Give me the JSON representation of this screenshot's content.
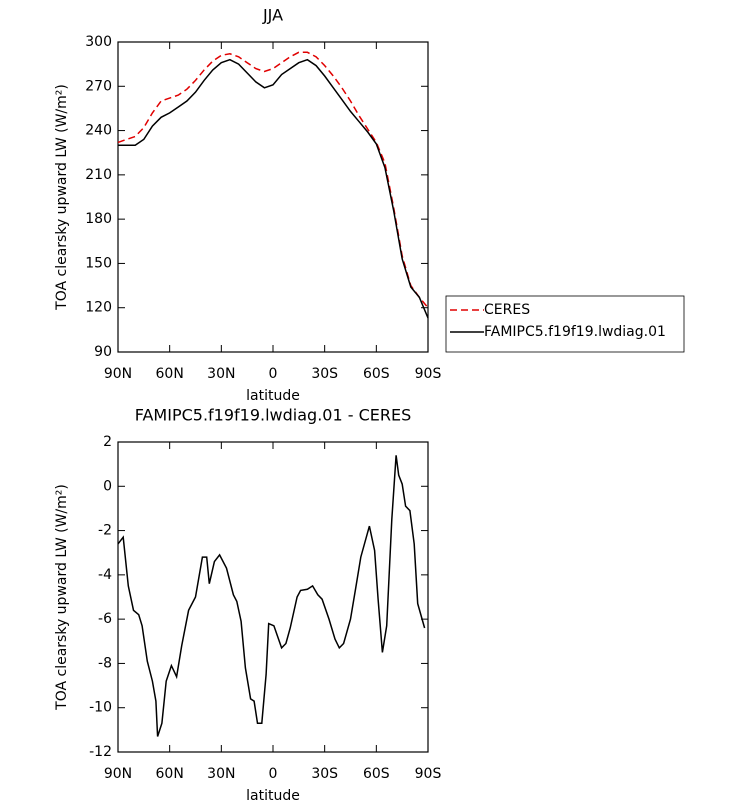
{
  "chart_data": [
    {
      "type": "line",
      "title": "JJA",
      "x": [
        90,
        85,
        80,
        75,
        70,
        65,
        60,
        55,
        50,
        45,
        40,
        35,
        30,
        25,
        20,
        15,
        10,
        5,
        0,
        -5,
        -10,
        -15,
        -20,
        -25,
        -30,
        -35,
        -40,
        -45,
        -50,
        -55,
        -60,
        -65,
        -70,
        -75,
        -80,
        -85,
        -90
      ],
      "series": [
        {
          "name": "CERES",
          "color": "#e00000",
          "dash": true,
          "values": [
            232,
            234,
            236,
            242,
            252,
            260,
            262,
            264,
            268,
            274,
            281,
            287,
            291,
            292,
            290,
            286,
            282,
            280,
            282,
            286,
            290,
            293,
            293,
            290,
            284,
            277,
            269,
            260,
            250,
            241,
            232,
            218,
            188,
            155,
            135,
            127,
            120
          ]
        },
        {
          "name": "FAMIPC5.f19f19.lwdiag.01",
          "color": "#000000",
          "dash": false,
          "values": [
            230,
            230,
            230,
            234,
            243,
            249,
            252,
            256,
            260,
            266,
            274,
            281,
            286,
            288,
            285,
            279,
            273,
            269,
            271,
            278,
            282,
            286,
            288,
            284,
            277,
            269,
            261,
            253,
            246,
            239,
            231,
            215,
            186,
            153,
            134,
            127,
            113
          ]
        }
      ],
      "xlim": [
        90,
        -90
      ],
      "xticks": [
        {
          "value": 90,
          "label": "90N"
        },
        {
          "value": 60,
          "label": "60N"
        },
        {
          "value": 30,
          "label": "30N"
        },
        0,
        {
          "value": -30,
          "label": "30S"
        },
        {
          "value": -60,
          "label": "60S"
        },
        {
          "value": -90,
          "label": "90S"
        }
      ],
      "ylim": [
        90,
        300
      ],
      "yticks": [
        90,
        120,
        150,
        180,
        210,
        240,
        270,
        300
      ],
      "xlabel": "latitude",
      "ylabel": "TOA clearsky upward LW (W/m²)",
      "legend": "right"
    },
    {
      "type": "line",
      "title": "FAMIPC5.f19f19.lwdiag.01 - CERES",
      "x": [
        90,
        87,
        84,
        81,
        78,
        76,
        73,
        70,
        68,
        67,
        64.5,
        62,
        59,
        56,
        53,
        49,
        45,
        41,
        38.5,
        37,
        34,
        31,
        27,
        23,
        21,
        18.5,
        16,
        13,
        11,
        9,
        6.5,
        4,
        2.5,
        -0.5,
        -5,
        -7.5,
        -10,
        -14,
        -16,
        -20,
        -23,
        -26,
        -28.5,
        -32.5,
        -36,
        -38.5,
        -41,
        -45,
        -48,
        -51,
        -56,
        -59,
        -61,
        -63.5,
        -66,
        -69,
        -71.5,
        -73,
        -75,
        -77,
        -79.5,
        -82,
        -84,
        -88
      ],
      "values": [
        -2.6,
        -2.3,
        -4.5,
        -5.6,
        -5.8,
        -6.3,
        -7.9,
        -8.8,
        -9.7,
        -11.3,
        -10.7,
        -8.8,
        -8.1,
        -8.6,
        -7.2,
        -5.6,
        -5.0,
        -3.2,
        -3.2,
        -4.4,
        -3.4,
        -3.1,
        -3.7,
        -4.9,
        -5.2,
        -6.1,
        -8.2,
        -9.6,
        -9.7,
        -10.7,
        -10.7,
        -8.5,
        -6.2,
        -6.3,
        -7.3,
        -7.1,
        -6.4,
        -5.0,
        -4.7,
        -4.65,
        -4.5,
        -4.9,
        -5.1,
        -6.0,
        -6.9,
        -7.3,
        -7.1,
        -6.0,
        -4.6,
        -3.2,
        -1.8,
        -2.9,
        -5.1,
        -7.5,
        -6.3,
        -1.5,
        1.4,
        0.5,
        0.1,
        -0.9,
        -1.1,
        -2.6,
        -5.3,
        -6.4
      ],
      "color": "#000000",
      "xlim": [
        90,
        -90
      ],
      "xticks": [
        {
          "value": 90,
          "label": "90N"
        },
        {
          "value": 60,
          "label": "60N"
        },
        {
          "value": 30,
          "label": "30N"
        },
        0,
        {
          "value": -30,
          "label": "30S"
        },
        {
          "value": -60,
          "label": "60S"
        },
        {
          "value": -90,
          "label": "90S"
        }
      ],
      "ylim": [
        -12,
        2
      ],
      "yticks": [
        -12,
        -10,
        -8,
        -6,
        -4,
        -2,
        0,
        2
      ],
      "xlabel": "latitude",
      "ylabel": "TOA clearsky upward LW (W/m²)"
    }
  ]
}
